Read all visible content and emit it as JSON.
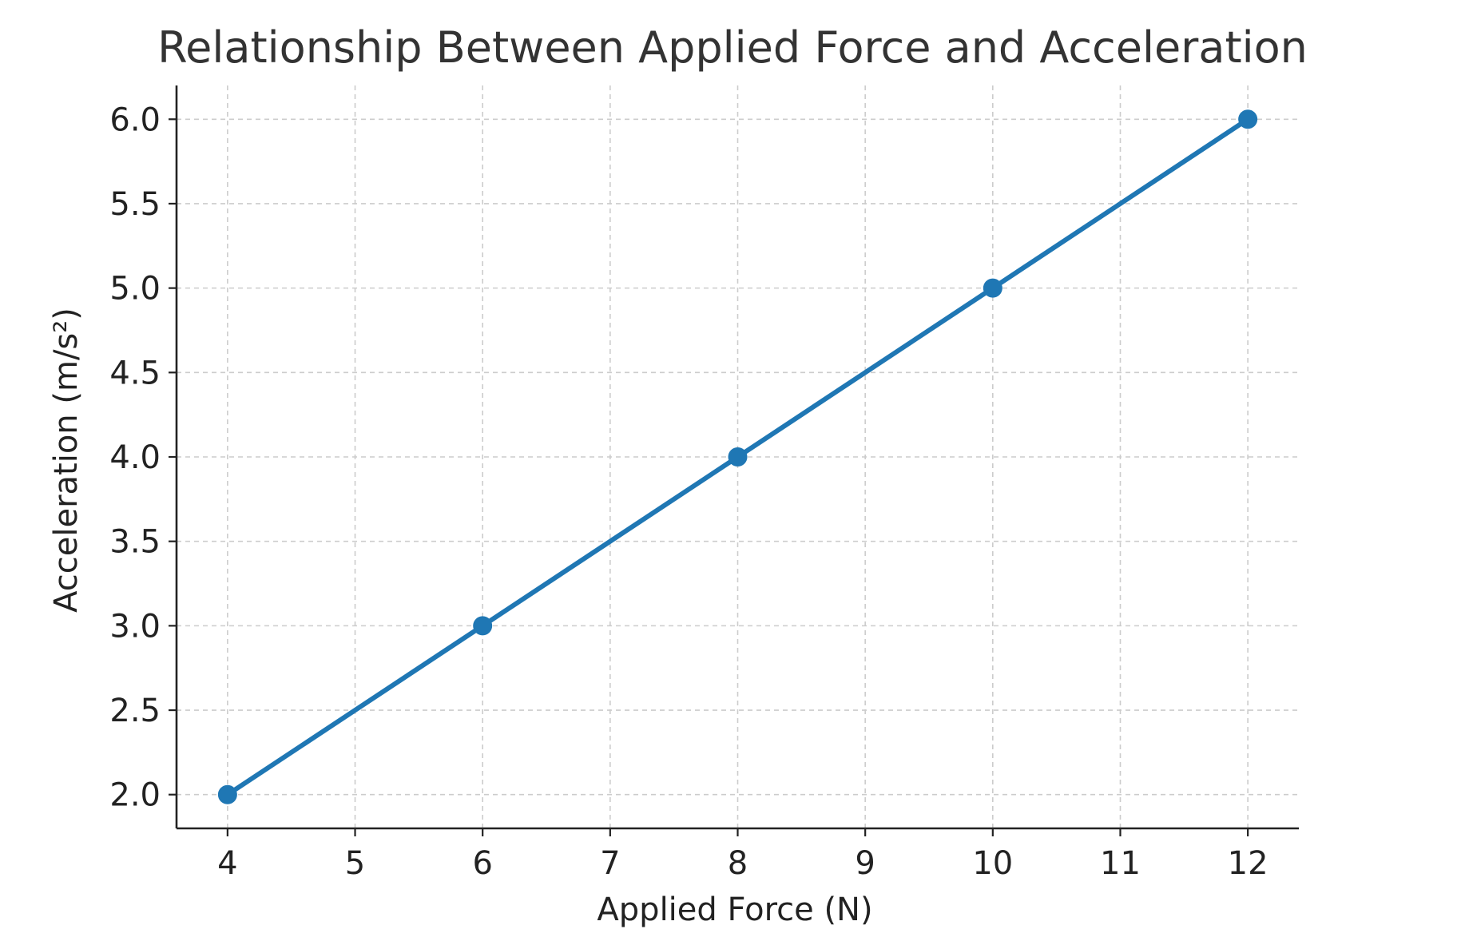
{
  "chart_data": {
    "type": "line",
    "title": "Relationship Between Applied Force and Acceleration",
    "xlabel": "Applied Force (N)",
    "ylabel": "Acceleration (m/s²)",
    "x": [
      4,
      6,
      8,
      10,
      12
    ],
    "series": [
      {
        "values": [
          2.0,
          3.0,
          4.0,
          5.0,
          6.0
        ],
        "color": "#1f77b4",
        "marker": "circle"
      }
    ],
    "xlim": [
      3.6,
      12.4
    ],
    "ylim": [
      1.8,
      6.2
    ],
    "xticks": [
      4,
      5,
      6,
      7,
      8,
      9,
      10,
      11,
      12
    ],
    "xtick_labels": [
      "4",
      "5",
      "6",
      "7",
      "8",
      "9",
      "10",
      "11",
      "12"
    ],
    "yticks": [
      2.0,
      2.5,
      3.0,
      3.5,
      4.0,
      4.5,
      5.0,
      5.5,
      6.0
    ],
    "ytick_labels": [
      "2.0",
      "2.5",
      "3.0",
      "3.5",
      "4.0",
      "4.5",
      "5.0",
      "5.5",
      "6.0"
    ],
    "grid": true,
    "grid_style": "dashed",
    "legend": "none",
    "colors": {
      "line": "#1f77b4",
      "grid": "#cccccc",
      "axis": "#222222",
      "title": "#333333"
    }
  }
}
